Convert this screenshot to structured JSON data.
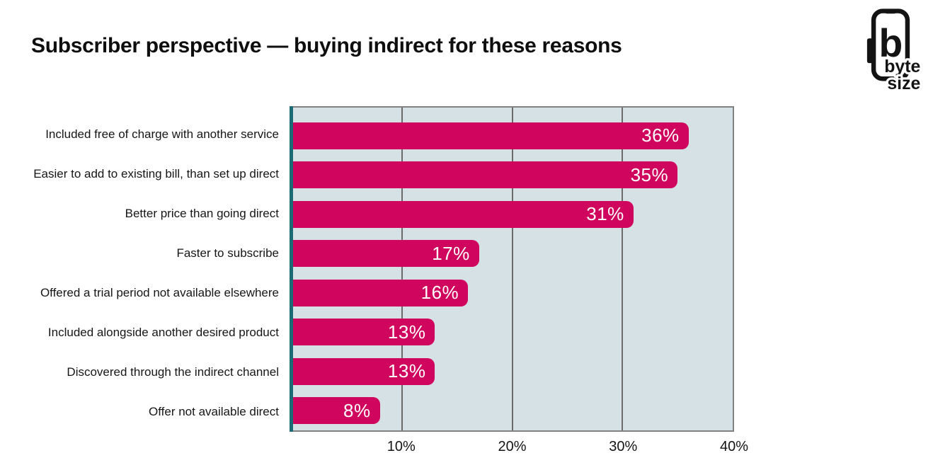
{
  "header": {
    "title": "Subscriber perspective — buying indirect for these reasons",
    "logo": {
      "icon": "phone-with-b-icon",
      "letter": "b",
      "brand_line1": "byte",
      "brand_line2": "size"
    }
  },
  "chart_data": {
    "type": "bar",
    "orientation": "horizontal",
    "title": "Subscriber perspective — buying indirect for these reasons",
    "categories": [
      "Included free of charge with another service",
      "Easier to add to existing bill, than set up direct",
      "Better price than going direct",
      "Faster to subscribe",
      "Offered a trial period not available elsewhere",
      "Included alongside another desired product",
      "Discovered through the indirect channel",
      "Offer not available direct"
    ],
    "values": [
      36,
      35,
      31,
      17,
      16,
      13,
      13,
      8
    ],
    "value_labels": [
      "36%",
      "35%",
      "31%",
      "17%",
      "16%",
      "13%",
      "13%",
      "8%"
    ],
    "xlabel": "",
    "ylabel": "",
    "xlim": [
      0,
      40
    ],
    "x_ticks": [
      {
        "label": "10%",
        "value": 10
      },
      {
        "label": "20%",
        "value": 20
      },
      {
        "label": "30%",
        "value": 30
      },
      {
        "label": "40%",
        "value": 40
      }
    ],
    "grid": "vertical-gridlines-at-10-20-30",
    "legend": "none",
    "colors": {
      "bar": "#d0065e",
      "bar_label_text": "#ffffff",
      "plot_background": "#d5e1e5",
      "plot_border": "#808080",
      "gridline": "#6b6b6b",
      "axis_accent": "#1a6b74",
      "text": "#111111"
    }
  }
}
